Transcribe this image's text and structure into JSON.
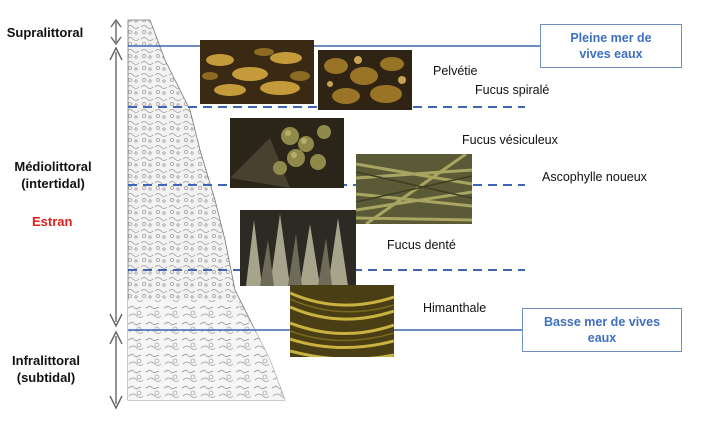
{
  "zones": {
    "supralittoral": "Supralittoral",
    "mediolittoral_1": "Médiolittoral",
    "mediolittoral_2": "(intertidal)",
    "estran": "Estran",
    "infralittoral_1": "Infralittoral",
    "infralittoral_2": "(subtidal)"
  },
  "tides": {
    "high_1": "Pleine mer de",
    "high_2": "vives eaux",
    "low_1": "Basse mer de vives",
    "low_2": "eaux"
  },
  "species": [
    {
      "name": "Pelvétie",
      "color": "#b38a2c"
    },
    {
      "name": "Fucus spiralé",
      "color": "#8a6a22"
    },
    {
      "name": "Fucus vésiculeux",
      "color": "#6f6a3a"
    },
    {
      "name": "Ascophylle noueux",
      "color": "#7c7a40"
    },
    {
      "name": "Fucus denté",
      "color": "#8d8a6c"
    },
    {
      "name": "Himanthale",
      "color": "#9c8a2a"
    }
  ],
  "colors": {
    "tide_line": "#3d66b5",
    "estran_text": "#e0201a"
  }
}
